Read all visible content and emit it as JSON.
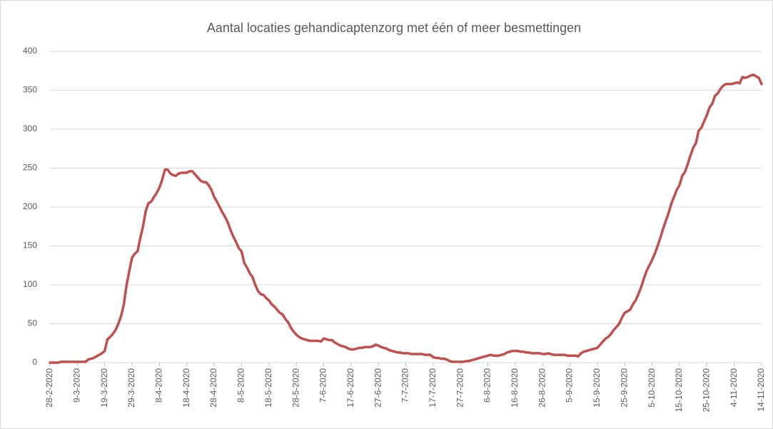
{
  "chart_data": {
    "type": "line",
    "title": "Aantal locaties gehandicaptenzorg met één of meer besmettingen",
    "categories": [
      "28-2-2020",
      null,
      null,
      null,
      null,
      null,
      null,
      null,
      null,
      null,
      "9-3-2020",
      null,
      null,
      null,
      null,
      null,
      null,
      null,
      null,
      null,
      "19-3-2020",
      null,
      null,
      null,
      null,
      null,
      null,
      null,
      null,
      null,
      "29-3-2020",
      null,
      null,
      null,
      null,
      null,
      null,
      null,
      null,
      null,
      "8-4-2020",
      null,
      null,
      null,
      null,
      null,
      null,
      null,
      null,
      null,
      "18-4-2020",
      null,
      null,
      null,
      null,
      null,
      null,
      null,
      null,
      null,
      "28-4-2020",
      null,
      null,
      null,
      null,
      null,
      null,
      null,
      null,
      null,
      "8-5-2020",
      null,
      null,
      null,
      null,
      null,
      null,
      null,
      null,
      null,
      "18-5-2020",
      null,
      null,
      null,
      null,
      null,
      null,
      null,
      null,
      null,
      "28-5-2020",
      null,
      null,
      null,
      null,
      null,
      null,
      null,
      null,
      null,
      "7-6-2020",
      null,
      null,
      null,
      null,
      null,
      null,
      null,
      null,
      null,
      "17-6-2020",
      null,
      null,
      null,
      null,
      null,
      null,
      null,
      null,
      null,
      "27-6-2020",
      null,
      null,
      null,
      null,
      null,
      null,
      null,
      null,
      null,
      "7-7-2020",
      null,
      null,
      null,
      null,
      null,
      null,
      null,
      null,
      null,
      "17-7-2020",
      null,
      null,
      null,
      null,
      null,
      null,
      null,
      null,
      null,
      "27-7-2020",
      null,
      null,
      null,
      null,
      null,
      null,
      null,
      null,
      null,
      "6-8-2020",
      null,
      null,
      null,
      null,
      null,
      null,
      null,
      null,
      null,
      "16-8-2020",
      null,
      null,
      null,
      null,
      null,
      null,
      null,
      null,
      null,
      "26-8-2020",
      null,
      null,
      null,
      null,
      null,
      null,
      null,
      null,
      null,
      "5-9-2020",
      null,
      null,
      null,
      null,
      null,
      null,
      null,
      null,
      null,
      "15-9-2020",
      null,
      null,
      null,
      null,
      null,
      null,
      null,
      null,
      null,
      "25-9-2020",
      null,
      null,
      null,
      null,
      null,
      null,
      null,
      null,
      null,
      "5-10-2020",
      null,
      null,
      null,
      null,
      null,
      null,
      null,
      null,
      null,
      "15-10-2020",
      null,
      null,
      null,
      null,
      null,
      null,
      null,
      null,
      null,
      "25-10-2020",
      null,
      null,
      null,
      null,
      null,
      null,
      null,
      null,
      null,
      "4-11-2020",
      null,
      null,
      null,
      null,
      null,
      null,
      null,
      null,
      null,
      "14-11-2020"
    ],
    "values": [
      0,
      0,
      0,
      0,
      1,
      1,
      1,
      1,
      1,
      1,
      1,
      1,
      1,
      1,
      4,
      5,
      6,
      8,
      10,
      12,
      15,
      30,
      33,
      37,
      42,
      50,
      60,
      75,
      100,
      118,
      135,
      140,
      143,
      160,
      175,
      195,
      205,
      207,
      213,
      218,
      225,
      235,
      248,
      248,
      243,
      241,
      240,
      243,
      244,
      244,
      244,
      246,
      246,
      242,
      238,
      234,
      232,
      232,
      228,
      222,
      213,
      207,
      200,
      193,
      187,
      180,
      170,
      162,
      155,
      147,
      143,
      128,
      122,
      115,
      110,
      100,
      92,
      88,
      87,
      83,
      80,
      75,
      72,
      68,
      64,
      62,
      56,
      52,
      45,
      40,
      36,
      33,
      31,
      30,
      29,
      28,
      28,
      28,
      28,
      27,
      31,
      30,
      29,
      29,
      26,
      24,
      22,
      21,
      20,
      18,
      17,
      17,
      18,
      19,
      19,
      20,
      20,
      20,
      21,
      23,
      22,
      20,
      19,
      18,
      16,
      15,
      14,
      13,
      13,
      12,
      12,
      12,
      11,
      11,
      11,
      11,
      11,
      10,
      10,
      10,
      7,
      6,
      6,
      5,
      5,
      4,
      2,
      1,
      1,
      1,
      1,
      1,
      2,
      2,
      3,
      4,
      5,
      6,
      7,
      8,
      9,
      10,
      9,
      9,
      9,
      10,
      11,
      13,
      14,
      15,
      15,
      15,
      14,
      14,
      13,
      13,
      12,
      12,
      12,
      12,
      11,
      11,
      12,
      11,
      10,
      10,
      10,
      10,
      10,
      9,
      9,
      9,
      9,
      8,
      12,
      14,
      15,
      16,
      17,
      18,
      19,
      23,
      27,
      31,
      33,
      37,
      42,
      46,
      50,
      58,
      64,
      66,
      68,
      75,
      80,
      88,
      97,
      108,
      118,
      125,
      132,
      140,
      150,
      160,
      172,
      182,
      192,
      204,
      213,
      222,
      228,
      240,
      245,
      255,
      266,
      276,
      282,
      298,
      302,
      310,
      318,
      328,
      333,
      343,
      346,
      352,
      356,
      358,
      358,
      358,
      359,
      360,
      359,
      367,
      366,
      367,
      369,
      370,
      368,
      366,
      358
    ],
    "color": "#c0504d",
    "ylim": [
      0,
      400
    ],
    "yticks": [
      0,
      50,
      100,
      150,
      200,
      250,
      300,
      350,
      400
    ],
    "grid": true
  }
}
